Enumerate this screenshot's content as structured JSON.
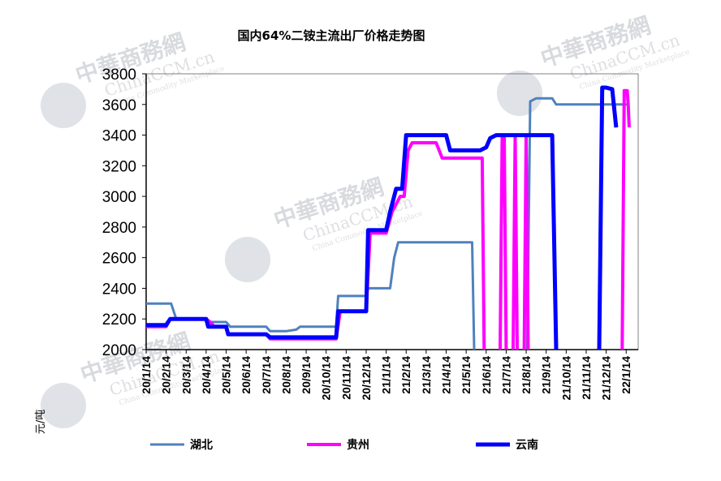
{
  "chart_data": {
    "type": "line",
    "title": "国内64%二铵主流出厂价格走势图",
    "ylabel": "元/吨",
    "xlabel": "",
    "ylim": [
      2000,
      3800
    ],
    "yticks": [
      2000,
      2200,
      2400,
      2600,
      2800,
      3000,
      3200,
      3400,
      3600,
      3800
    ],
    "x_range": [
      0,
      24.6
    ],
    "categories": [
      "20/1/14",
      "20/2/14",
      "20/3/14",
      "20/4/14",
      "20/5/14",
      "20/6/14",
      "20/7/14",
      "20/8/14",
      "20/9/14",
      "20/10/14",
      "20/11/14",
      "20/12/14",
      "21/1/14",
      "21/2/14",
      "21/3/14",
      "21/4/14",
      "21/5/14",
      "21/6/14",
      "21/7/14",
      "21/8/14",
      "21/9/14",
      "21/10/14",
      "21/11/14",
      "21/12/14",
      "22/1/14"
    ],
    "legend_position": "bottom",
    "grid": false,
    "series": [
      {
        "name": "湖北",
        "color": "#4f81bd",
        "points": [
          [
            0,
            2300
          ],
          [
            0.2,
            2300
          ],
          [
            0.3,
            2300
          ],
          [
            1,
            2300
          ],
          [
            1.25,
            2300
          ],
          [
            1.5,
            2200
          ],
          [
            2,
            2200
          ],
          [
            3,
            2200
          ],
          [
            3.2,
            2180
          ],
          [
            4,
            2180
          ],
          [
            4.2,
            2150
          ],
          [
            5,
            2150
          ],
          [
            6,
            2150
          ],
          [
            6.2,
            2120
          ],
          [
            7,
            2120
          ],
          [
            7.5,
            2130
          ],
          [
            7.7,
            2150
          ],
          [
            8,
            2150
          ],
          [
            9,
            2150
          ],
          [
            9.5,
            2150
          ],
          [
            9.6,
            2350
          ],
          [
            10,
            2350
          ],
          [
            11,
            2350
          ],
          [
            11.1,
            2400
          ],
          [
            12,
            2400
          ],
          [
            12.2,
            2400
          ],
          [
            12.4,
            2600
          ],
          [
            12.6,
            2700
          ],
          [
            13,
            2700
          ],
          [
            14,
            2700
          ],
          [
            15,
            2700
          ],
          [
            16,
            2700
          ],
          [
            16.3,
            2700
          ],
          [
            16.4,
            2000
          ],
          null,
          [
            19.05,
            2000
          ],
          [
            19.2,
            3620
          ],
          [
            19.5,
            3640
          ],
          [
            20,
            3640
          ],
          [
            20.3,
            3640
          ],
          [
            20.5,
            3600
          ],
          [
            21,
            3600
          ],
          [
            22,
            3600
          ],
          [
            23,
            3600
          ],
          [
            24,
            3600
          ],
          [
            24.15,
            3600
          ]
        ]
      },
      {
        "name": "贵州",
        "color": "#ff00ff",
        "points": [
          [
            0,
            2150
          ],
          [
            1,
            2150
          ],
          [
            1.2,
            2200
          ],
          [
            2,
            2200
          ],
          [
            3,
            2200
          ],
          [
            3.2,
            2180
          ],
          [
            3.4,
            2150
          ],
          [
            4,
            2150
          ],
          [
            4.1,
            2100
          ],
          [
            5,
            2100
          ],
          [
            6,
            2100
          ],
          [
            6.2,
            2070
          ],
          [
            7,
            2070
          ],
          [
            8,
            2070
          ],
          [
            9,
            2070
          ],
          [
            9.5,
            2070
          ],
          [
            9.7,
            2250
          ],
          [
            10,
            2250
          ],
          [
            11,
            2250
          ],
          [
            11.2,
            2760
          ],
          [
            12,
            2760
          ],
          [
            12.3,
            2900
          ],
          [
            12.7,
            3000
          ],
          [
            12.9,
            3000
          ],
          [
            13.1,
            3300
          ],
          [
            13.3,
            3350
          ],
          [
            14,
            3350
          ],
          [
            14.5,
            3350
          ],
          [
            14.8,
            3250
          ],
          [
            15,
            3250
          ],
          [
            16,
            3250
          ],
          [
            16.8,
            3250
          ],
          [
            16.9,
            2000
          ],
          null,
          [
            17.7,
            2000
          ],
          [
            17.8,
            3400
          ],
          [
            17.9,
            3400
          ],
          [
            18,
            2000
          ],
          null,
          [
            18.35,
            2000
          ],
          [
            18.45,
            3400
          ],
          [
            18.55,
            2000
          ],
          null,
          [
            18.9,
            2000
          ],
          [
            19,
            3400
          ],
          [
            19.1,
            2000
          ],
          null,
          [
            23.8,
            2000
          ],
          [
            23.9,
            3690
          ],
          [
            24.05,
            3690
          ],
          [
            24.1,
            3600
          ],
          [
            24.15,
            3450
          ]
        ]
      },
      {
        "name": "云南",
        "color": "#0000ff",
        "points": [
          [
            0,
            2160
          ],
          [
            1,
            2160
          ],
          [
            1.2,
            2200
          ],
          [
            2,
            2200
          ],
          [
            3,
            2200
          ],
          [
            3.1,
            2150
          ],
          [
            3.5,
            2150
          ],
          [
            4,
            2150
          ],
          [
            4.1,
            2100
          ],
          [
            5,
            2100
          ],
          [
            6,
            2100
          ],
          [
            6.2,
            2080
          ],
          [
            7,
            2080
          ],
          [
            8,
            2080
          ],
          [
            9,
            2080
          ],
          [
            9.5,
            2080
          ],
          [
            9.6,
            2250
          ],
          [
            10,
            2250
          ],
          [
            11,
            2250
          ],
          [
            11.1,
            2780
          ],
          [
            12,
            2780
          ],
          [
            12.2,
            2900
          ],
          [
            12.5,
            3050
          ],
          [
            12.8,
            3050
          ],
          [
            13,
            3400
          ],
          [
            14,
            3400
          ],
          [
            15,
            3400
          ],
          [
            15.2,
            3300
          ],
          [
            16,
            3300
          ],
          [
            16.7,
            3300
          ],
          [
            17,
            3320
          ],
          [
            17.2,
            3380
          ],
          [
            17.5,
            3400
          ],
          [
            18,
            3400
          ],
          [
            19,
            3400
          ],
          [
            20,
            3400
          ],
          [
            20.3,
            3400
          ],
          [
            20.5,
            2000
          ],
          null,
          [
            22.65,
            2000
          ],
          [
            22.8,
            3710
          ],
          [
            23,
            3710
          ],
          [
            23.3,
            3700
          ],
          [
            23.5,
            3450
          ]
        ]
      }
    ]
  },
  "watermarks": [
    {
      "main": "中華商務網",
      "sub": "ChinaCCM.cn",
      "tagline": "China Commodity Marketplace"
    },
    {
      "main": "中華商務網",
      "sub": "ChinaCCM.cn",
      "tagline": "China Commodity Marketplace"
    },
    {
      "main": "中華商務網",
      "sub": "ChinaCCM.cn",
      "tagline": "China Commodity Marketplace"
    },
    {
      "main": "中華商務網",
      "sub": "ChinaCCM.cn",
      "tagline": "China Commodity Marketplace"
    }
  ]
}
